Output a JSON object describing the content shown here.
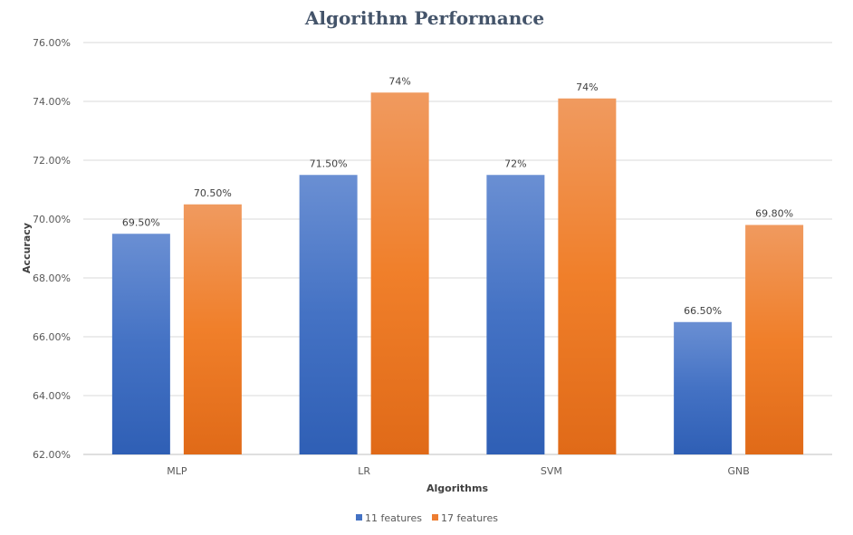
{
  "chart_data": {
    "type": "bar",
    "title": "Algorithm Performance",
    "xlabel": "Algorithms",
    "ylabel": "Accuracy",
    "categories": [
      "MLP",
      "LR",
      "SVM",
      "GNB"
    ],
    "ylim": [
      62,
      76
    ],
    "ytick_step": 2,
    "ytick_labels": [
      "62.00%",
      "64.00%",
      "66.00%",
      "68.00%",
      "70.00%",
      "72.00%",
      "74.00%",
      "76.00%"
    ],
    "grid": true,
    "legend_position": "bottom",
    "series": [
      {
        "name": "11 features",
        "color": "#4472c4",
        "values": [
          69.5,
          71.5,
          71.5,
          66.5
        ],
        "labels": [
          "69.50%",
          "71.50%",
          "72%",
          "66.50%"
        ]
      },
      {
        "name": "17 features",
        "color": "#ed7d31",
        "values": [
          70.5,
          74.3,
          74.1,
          69.8
        ],
        "labels": [
          "70.50%",
          "74%",
          "74%",
          "69.80%"
        ]
      }
    ]
  }
}
